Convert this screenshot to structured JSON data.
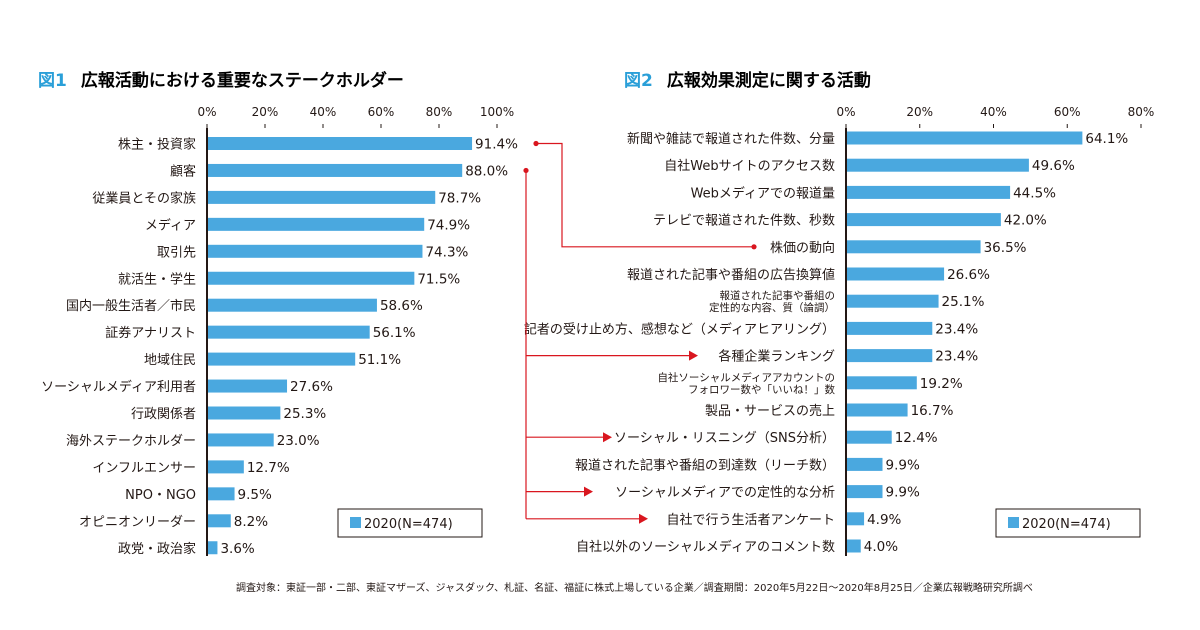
{
  "colors": {
    "bar": "#4aa8df",
    "accent": "#2a9fd8",
    "arrow": "#d9161f",
    "axis": "#231815"
  },
  "chart_data": [
    {
      "type": "bar",
      "orientation": "horizontal",
      "figure_label": "図1",
      "title": "広報活動における重要なステークホルダー",
      "xlim": [
        0,
        100
      ],
      "ticks": [
        "0%",
        "20%",
        "40%",
        "60%",
        "80%",
        "100%"
      ],
      "categories": [
        "株主・投資家",
        "顧客",
        "従業員とその家族",
        "メディア",
        "取引先",
        "就活生・学生",
        "国内一般生活者／市民",
        "証券アナリスト",
        "地域住民",
        "ソーシャルメディア利用者",
        "行政関係者",
        "海外ステークホルダー",
        "インフルエンサー",
        "NPO・NGO",
        "オピニオンリーダー",
        "政党・政治家"
      ],
      "values": [
        91.4,
        88.0,
        78.7,
        74.9,
        74.3,
        71.5,
        58.6,
        56.1,
        51.1,
        27.6,
        25.3,
        23.0,
        12.7,
        9.5,
        8.2,
        3.6
      ],
      "value_labels": [
        "91.4%",
        "88.0%",
        "78.7%",
        "74.9%",
        "74.3%",
        "71.5%",
        "58.6%",
        "56.1%",
        "51.1%",
        "27.6%",
        "25.3%",
        "23.0%",
        "12.7%",
        "9.5%",
        "8.2%",
        "3.6%"
      ],
      "legend": "2020(N=474)"
    },
    {
      "type": "bar",
      "orientation": "horizontal",
      "figure_label": "図2",
      "title": "広報効果測定に関する活動",
      "xlim": [
        0,
        80
      ],
      "ticks": [
        "0%",
        "20%",
        "40%",
        "60%",
        "80%"
      ],
      "categories": [
        [
          "新聞や雑誌で報道された件数、分量"
        ],
        [
          "自社Webサイトのアクセス数"
        ],
        [
          "Webメディアでの報道量"
        ],
        [
          "テレビで報道された件数、秒数"
        ],
        [
          "株価の動向"
        ],
        [
          "報道された記事や番組の広告換算値"
        ],
        [
          "報道された記事や番組の",
          "定性的な内容、質（論調）"
        ],
        [
          "記者の受け止め方、感想など（メディアヒアリング）"
        ],
        [
          "各種企業ランキング"
        ],
        [
          "自社ソーシャルメディアアカウントの",
          "フォロワー数や「いいね！」数"
        ],
        [
          "製品・サービスの売上"
        ],
        [
          "ソーシャル・リスニング（SNS分析）"
        ],
        [
          "報道された記事や番組の到達数（リーチ数）"
        ],
        [
          "ソーシャルメディアでの定性的な分析"
        ],
        [
          "自社で行う生活者アンケート"
        ],
        [
          "自社以外のソーシャルメディアのコメント数"
        ]
      ],
      "values": [
        64.1,
        49.6,
        44.5,
        42.0,
        36.5,
        26.6,
        25.1,
        23.4,
        23.4,
        19.2,
        16.7,
        12.4,
        9.9,
        9.9,
        4.9,
        4.0
      ],
      "value_labels": [
        "64.1%",
        "49.6%",
        "44.5%",
        "42.0%",
        "36.5%",
        "26.6%",
        "25.1%",
        "23.4%",
        "23.4%",
        "19.2%",
        "16.7%",
        "12.4%",
        "9.9%",
        "9.9%",
        "4.9%",
        "4.0%"
      ],
      "legend": "2020(N=474)",
      "annotations": [
        {
          "from_fig1_category": "株主・投資家",
          "to_category": "株価の動向"
        },
        {
          "from_fig1_category": "顧客",
          "to_category": "各種企業ランキング"
        },
        {
          "from_fig1_category": "顧客",
          "to_category": "ソーシャル・リスニング（SNS分析）"
        },
        {
          "from_fig1_category": "顧客",
          "to_category": "ソーシャルメディアでの定性的な分析"
        },
        {
          "from_fig1_category": "顧客",
          "to_category": "自社で行う生活者アンケート"
        }
      ]
    }
  ],
  "footnote": "調査対象：東証一部・二部、東証マザーズ、ジャスダック、札証、名証、福証に株式上場している企業／調査期間：2020年5月22日〜2020年8月25日／企業広報戦略研究所調べ"
}
